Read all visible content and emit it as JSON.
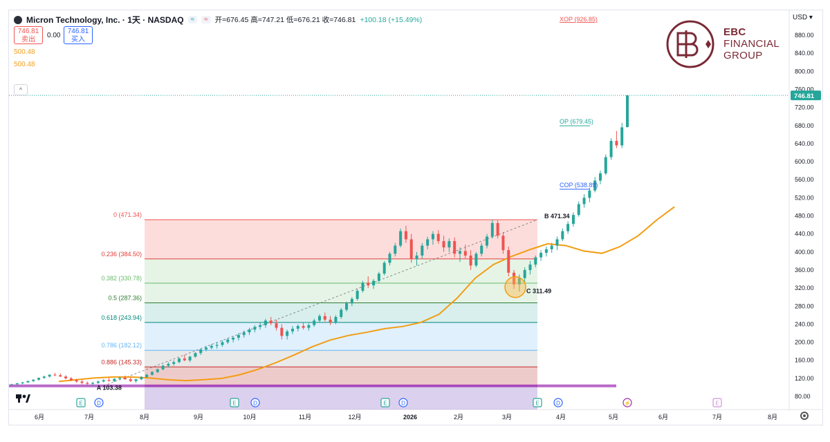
{
  "header": {
    "symbol_title": "Micron Technology, Inc. · 1天 · NASDAQ",
    "chip_up": "≈",
    "chip_down": "≈",
    "ohlc": "开=676.45 高=747.21 低=676.21 收=746.81",
    "change": "+100.18 (+15.49%)"
  },
  "trade": {
    "sell_price": "746.81",
    "sell_label": "卖出",
    "spread": "0.00",
    "buy_price": "746.81",
    "buy_label": "买入"
  },
  "indicator_values": [
    "500.48",
    "500.48"
  ],
  "currency": "USD",
  "logo": {
    "line1": "EBC",
    "line2": "FINANCIAL",
    "line3": "GROUP"
  },
  "colors": {
    "up": "#26a69a",
    "down": "#ef5350",
    "ma": "#f39c12",
    "accent": "#7a2a35"
  },
  "chart_data": {
    "type": "candlestick",
    "y_axis": {
      "min": 80,
      "max": 880,
      "ticks": [
        80,
        120,
        160,
        200,
        240,
        280,
        320,
        360,
        400,
        440,
        480,
        520,
        560,
        600,
        640,
        680,
        720,
        760,
        800,
        840,
        880
      ]
    },
    "x_axis_ticks": [
      "6月",
      "7月",
      "8月",
      "9月",
      "10月",
      "11月",
      "12月",
      "2026",
      "2月",
      "3月",
      "4月",
      "5月",
      "6月",
      "7月",
      "8月"
    ],
    "last_price": "746.81",
    "fibonacci": {
      "A": 103.38,
      "B": 471.34,
      "levels": [
        {
          "ratio": "0",
          "value": 471.34,
          "label": "0 (471.34)",
          "color": "#ef5350",
          "fill": "rgba(239,83,80,0.20)"
        },
        {
          "ratio": "0.236",
          "value": 384.5,
          "label": "0.236 (384.50)",
          "color": "#e53935",
          "fill": "rgba(129,199,132,0.20)"
        },
        {
          "ratio": "0.382",
          "value": 330.78,
          "label": "0.382 (330.78)",
          "color": "#66bb6a",
          "fill": "rgba(102,187,106,0.16)"
        },
        {
          "ratio": "0.5",
          "value": 287.36,
          "label": "0.5 (287.36)",
          "color": "#2e7d32",
          "fill": "rgba(38,166,154,0.18)"
        },
        {
          "ratio": "0.618",
          "value": 243.94,
          "label": "0.618 (243.94)",
          "color": "#00897b",
          "fill": "rgba(100,181,246,0.20)"
        },
        {
          "ratio": "0.786",
          "value": 182.12,
          "label": "0.786 (182.12)",
          "color": "#64b5f6",
          "fill": "rgba(120,120,120,0.16)"
        },
        {
          "ratio": "0.886",
          "value": 145.33,
          "label": "0.886 (145.33)",
          "color": "#c62828",
          "fill": "rgba(193,68,68,0.28)"
        },
        {
          "ratio": "1",
          "value": 103.38,
          "label": "1 (103.38)",
          "color": "#7e57c2",
          "fill": "rgba(126,87,194,0.28)"
        }
      ]
    },
    "annotations": [
      {
        "text": "A 103.38",
        "value": 103.38
      },
      {
        "text": "B 471.34",
        "value": 471.34
      },
      {
        "text": "C 311.49",
        "value": 311.49
      },
      {
        "text": "XOP (926.85)",
        "value": 926.85
      },
      {
        "text": "OP (679.45)",
        "value": 679.45
      },
      {
        "text": "COP (538.89)",
        "value": 538.89
      }
    ],
    "event_markers": [
      "E",
      "D",
      "E",
      "D",
      "E",
      "D",
      "E",
      "D",
      "⚡",
      "E"
    ],
    "ma_values": [
      [
        0,
        113
      ],
      [
        1,
        117
      ],
      [
        2,
        121
      ],
      [
        3,
        123
      ],
      [
        4,
        123
      ],
      [
        5,
        121
      ],
      [
        6,
        117
      ],
      [
        7,
        115
      ],
      [
        8,
        117
      ],
      [
        9,
        120
      ],
      [
        10,
        128
      ],
      [
        11,
        140
      ],
      [
        12,
        155
      ],
      [
        13,
        172
      ],
      [
        14,
        190
      ],
      [
        15,
        205
      ],
      [
        16,
        215
      ],
      [
        17,
        222
      ],
      [
        18,
        230
      ],
      [
        19,
        235
      ],
      [
        20,
        244
      ],
      [
        21,
        262
      ],
      [
        22,
        298
      ],
      [
        23,
        342
      ],
      [
        24,
        372
      ],
      [
        25,
        390
      ],
      [
        26,
        405
      ],
      [
        27,
        418
      ],
      [
        28,
        414
      ],
      [
        29,
        402
      ],
      [
        30,
        397
      ],
      [
        31,
        412
      ],
      [
        32,
        436
      ],
      [
        33,
        470
      ],
      [
        34,
        500
      ]
    ],
    "candles": [
      [
        0,
        106,
        108,
        104,
        107
      ],
      [
        1,
        107,
        110,
        105,
        109
      ],
      [
        2,
        109,
        112,
        107,
        111
      ],
      [
        3,
        111,
        115,
        110,
        114
      ],
      [
        4,
        114,
        118,
        112,
        117
      ],
      [
        5,
        117,
        122,
        115,
        121
      ],
      [
        6,
        121,
        126,
        119,
        124
      ],
      [
        7,
        124,
        129,
        122,
        128
      ],
      [
        8,
        128,
        132,
        125,
        127
      ],
      [
        9,
        127,
        131,
        123,
        124
      ],
      [
        10,
        124,
        127,
        118,
        120
      ],
      [
        11,
        120,
        123,
        114,
        116
      ],
      [
        12,
        116,
        119,
        110,
        113
      ],
      [
        13,
        113,
        116,
        107,
        110
      ],
      [
        14,
        110,
        113,
        104,
        108
      ],
      [
        15,
        108,
        112,
        103,
        110
      ],
      [
        16,
        110,
        115,
        108,
        113
      ],
      [
        17,
        113,
        118,
        111,
        116
      ],
      [
        18,
        116,
        121,
        113,
        114
      ],
      [
        19,
        114,
        120,
        112,
        119
      ],
      [
        20,
        119,
        124,
        116,
        121
      ],
      [
        21,
        121,
        126,
        117,
        118
      ],
      [
        22,
        118,
        122,
        112,
        114
      ],
      [
        23,
        114,
        119,
        110,
        118
      ],
      [
        24,
        118,
        125,
        116,
        123
      ],
      [
        25,
        123,
        130,
        121,
        128
      ],
      [
        26,
        128,
        136,
        126,
        134
      ],
      [
        27,
        134,
        142,
        132,
        140
      ],
      [
        28,
        140,
        150,
        138,
        148
      ],
      [
        29,
        148,
        156,
        144,
        152
      ],
      [
        30,
        152,
        160,
        148,
        156
      ],
      [
        31,
        156,
        166,
        154,
        164
      ],
      [
        32,
        164,
        172,
        158,
        160
      ],
      [
        33,
        160,
        170,
        156,
        168
      ],
      [
        34,
        168,
        178,
        166,
        176
      ],
      [
        35,
        176,
        186,
        172,
        184
      ],
      [
        36,
        184,
        192,
        180,
        188
      ],
      [
        37,
        188,
        196,
        184,
        192
      ],
      [
        38,
        192,
        200,
        186,
        194
      ],
      [
        39,
        194,
        204,
        190,
        200
      ],
      [
        40,
        200,
        210,
        196,
        206
      ],
      [
        41,
        206,
        214,
        200,
        210
      ],
      [
        42,
        210,
        220,
        204,
        216
      ],
      [
        43,
        216,
        226,
        210,
        222
      ],
      [
        44,
        222,
        232,
        216,
        228
      ],
      [
        45,
        228,
        238,
        222,
        234
      ],
      [
        46,
        234,
        244,
        228,
        238
      ],
      [
        47,
        238,
        252,
        232,
        248
      ],
      [
        48,
        248,
        256,
        238,
        242
      ],
      [
        49,
        242,
        250,
        226,
        232
      ],
      [
        50,
        232,
        240,
        206,
        214
      ],
      [
        51,
        214,
        228,
        206,
        224
      ],
      [
        52,
        224,
        236,
        218,
        230
      ],
      [
        53,
        230,
        240,
        224,
        236
      ],
      [
        54,
        236,
        244,
        228,
        232
      ],
      [
        55,
        232,
        242,
        226,
        238
      ],
      [
        56,
        238,
        252,
        234,
        248
      ],
      [
        57,
        248,
        262,
        244,
        258
      ],
      [
        58,
        258,
        266,
        246,
        250
      ],
      [
        59,
        250,
        258,
        238,
        244
      ],
      [
        60,
        244,
        260,
        240,
        256
      ],
      [
        61,
        256,
        276,
        252,
        272
      ],
      [
        62,
        272,
        290,
        268,
        286
      ],
      [
        63,
        286,
        300,
        280,
        296
      ],
      [
        64,
        296,
        318,
        292,
        314
      ],
      [
        65,
        314,
        336,
        310,
        332
      ],
      [
        66,
        332,
        346,
        320,
        326
      ],
      [
        67,
        326,
        340,
        318,
        336
      ],
      [
        68,
        336,
        356,
        332,
        352
      ],
      [
        69,
        352,
        380,
        348,
        376
      ],
      [
        70,
        376,
        400,
        370,
        396
      ],
      [
        71,
        396,
        420,
        390,
        414
      ],
      [
        72,
        414,
        452,
        410,
        446
      ],
      [
        73,
        446,
        458,
        420,
        428
      ],
      [
        74,
        428,
        440,
        376,
        384
      ],
      [
        75,
        384,
        400,
        370,
        392
      ],
      [
        76,
        392,
        420,
        386,
        414
      ],
      [
        77,
        414,
        434,
        406,
        428
      ],
      [
        78,
        428,
        446,
        416,
        440
      ],
      [
        79,
        440,
        448,
        418,
        424
      ],
      [
        80,
        424,
        436,
        400,
        410
      ],
      [
        81,
        410,
        430,
        400,
        424
      ],
      [
        82,
        424,
        432,
        388,
        396
      ],
      [
        83,
        396,
        410,
        378,
        402
      ],
      [
        84,
        402,
        416,
        386,
        392
      ],
      [
        85,
        392,
        404,
        360,
        370
      ],
      [
        86,
        370,
        400,
        366,
        396
      ],
      [
        87,
        396,
        420,
        390,
        414
      ],
      [
        88,
        414,
        440,
        408,
        434
      ],
      [
        89,
        434,
        472,
        430,
        464
      ],
      [
        90,
        464,
        470,
        430,
        436
      ],
      [
        91,
        436,
        444,
        396,
        404
      ],
      [
        92,
        404,
        412,
        346,
        354
      ],
      [
        93,
        354,
        360,
        318,
        328
      ],
      [
        94,
        328,
        350,
        312,
        342
      ],
      [
        95,
        342,
        366,
        330,
        360
      ],
      [
        96,
        360,
        380,
        350,
        372
      ],
      [
        97,
        372,
        392,
        366,
        388
      ],
      [
        98,
        388,
        404,
        380,
        398
      ],
      [
        99,
        398,
        412,
        390,
        406
      ],
      [
        100,
        406,
        420,
        398,
        414
      ],
      [
        101,
        414,
        434,
        404,
        428
      ],
      [
        102,
        428,
        452,
        424,
        446
      ],
      [
        103,
        446,
        468,
        440,
        462
      ],
      [
        104,
        462,
        488,
        456,
        482
      ],
      [
        105,
        482,
        512,
        478,
        506
      ],
      [
        106,
        506,
        528,
        498,
        520
      ],
      [
        107,
        520,
        542,
        510,
        536
      ],
      [
        108,
        536,
        566,
        532,
        558
      ],
      [
        109,
        558,
        580,
        550,
        574
      ],
      [
        110,
        574,
        616,
        570,
        610
      ],
      [
        111,
        610,
        652,
        604,
        646
      ],
      [
        112,
        646,
        668,
        630,
        636
      ],
      [
        113,
        636,
        686,
        630,
        676
      ],
      [
        114,
        676.45,
        747.21,
        676.21,
        746.81
      ]
    ]
  }
}
